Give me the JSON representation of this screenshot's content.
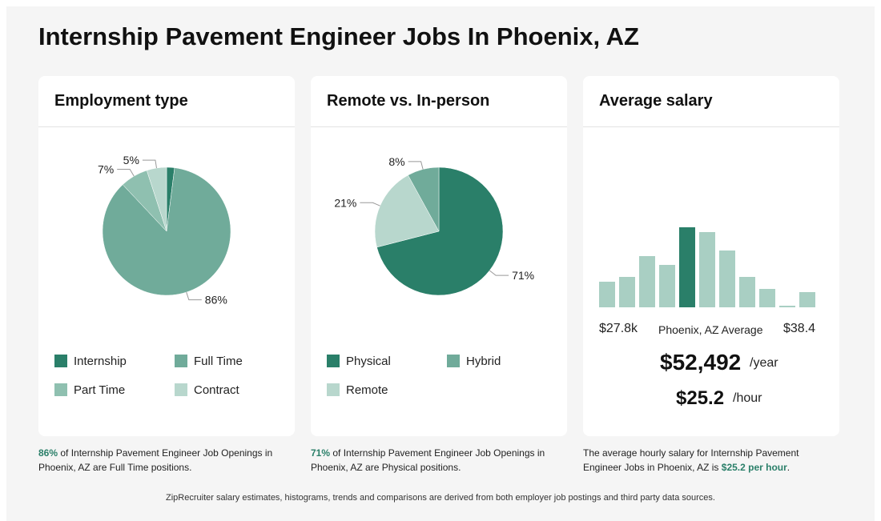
{
  "page_title": "Internship Pavement Engineer Jobs In Phoenix, AZ",
  "colors": {
    "dark": "#2a7f69",
    "mid": "#70ab9a",
    "light": "#8fc0b0",
    "pale": "#b8d7cd",
    "bar_light": "#a9cfc3"
  },
  "employment": {
    "title": "Employment type",
    "legend": [
      {
        "label": "Internship",
        "color": "#2a7f69"
      },
      {
        "label": "Full Time",
        "color": "#70ab9a"
      },
      {
        "label": "Part Time",
        "color": "#8fc0b0"
      },
      {
        "label": "Contract",
        "color": "#b8d7cd"
      }
    ],
    "note": {
      "highlight": "86%",
      "text": " of Internship Pavement Engineer Job Openings in Phoenix, AZ are Full Time positions."
    }
  },
  "remote": {
    "title": "Remote vs. In-person",
    "legend": [
      {
        "label": "Physical",
        "color": "#2a7f69"
      },
      {
        "label": "Hybrid",
        "color": "#70ab9a"
      },
      {
        "label": "Remote",
        "color": "#b8d7cd"
      }
    ],
    "note": {
      "highlight": "71%",
      "text": " of Internship Pavement Engineer Job Openings in Phoenix, AZ are Physical positions."
    }
  },
  "salary": {
    "title": "Average salary",
    "range_min": "$27.8k",
    "range_label": "Phoenix, AZ Average",
    "range_max": "$38.4",
    "yearly": "$52,492",
    "yearly_unit": "/year",
    "hourly": "$25.2",
    "hourly_unit": "/hour",
    "note": {
      "text": "The average hourly salary for Internship Pavement Engineer Jobs in Phoenix, AZ is ",
      "highlight": "$25.2 per hour",
      "end": "."
    }
  },
  "footer": "ZipRecruiter salary estimates, histograms, trends and comparisons are derived from both employer job postings and third party data sources.",
  "chart_data": [
    {
      "type": "pie",
      "title": "Employment type",
      "categories": [
        "Internship",
        "Full Time",
        "Part Time",
        "Contract"
      ],
      "values": [
        2,
        86,
        7,
        5
      ],
      "labels": [
        "",
        "86%",
        "7%",
        "5%"
      ],
      "colors": [
        "#2a7f69",
        "#70ab9a",
        "#8fc0b0",
        "#b8d7cd"
      ]
    },
    {
      "type": "pie",
      "title": "Remote vs. In-person",
      "categories": [
        "Physical",
        "Remote",
        "Hybrid"
      ],
      "values": [
        71,
        21,
        8
      ],
      "labels": [
        "71%",
        "21%",
        "8%"
      ],
      "colors": [
        "#2a7f69",
        "#b8d7cd",
        "#70ab9a"
      ]
    },
    {
      "type": "bar",
      "title": "Average salary",
      "values": [
        32,
        38,
        64,
        53,
        100,
        94,
        71,
        38,
        23,
        2,
        19
      ],
      "highlight_index": 4,
      "ylim": [
        0,
        100
      ]
    }
  ]
}
